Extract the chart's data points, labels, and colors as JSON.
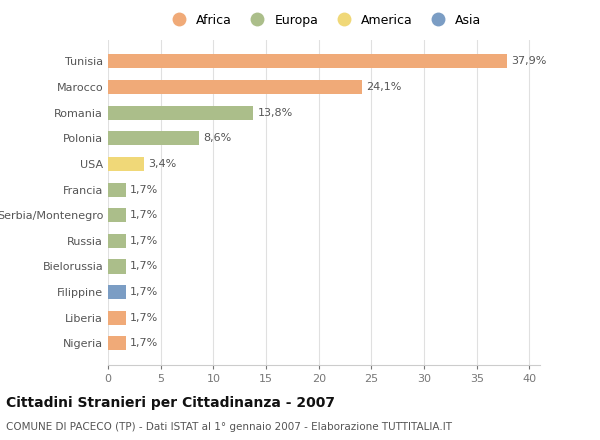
{
  "categories": [
    "Nigeria",
    "Liberia",
    "Filippine",
    "Bielorussia",
    "Russia",
    "Serbia/Montenegro",
    "Francia",
    "USA",
    "Polonia",
    "Romania",
    "Marocco",
    "Tunisia"
  ],
  "values": [
    1.7,
    1.7,
    1.7,
    1.7,
    1.7,
    1.7,
    1.7,
    3.4,
    8.6,
    13.8,
    24.1,
    37.9
  ],
  "labels": [
    "1,7%",
    "1,7%",
    "1,7%",
    "1,7%",
    "1,7%",
    "1,7%",
    "1,7%",
    "3,4%",
    "8,6%",
    "13,8%",
    "24,1%",
    "37,9%"
  ],
  "colors": [
    "#F0AA78",
    "#F0AA78",
    "#7B9DC4",
    "#ABBE8A",
    "#ABBE8A",
    "#ABBE8A",
    "#ABBE8A",
    "#F0D878",
    "#ABBE8A",
    "#ABBE8A",
    "#F0AA78",
    "#F0AA78"
  ],
  "legend": [
    {
      "label": "Africa",
      "color": "#F0AA78"
    },
    {
      "label": "Europa",
      "color": "#ABBE8A"
    },
    {
      "label": "America",
      "color": "#F0D878"
    },
    {
      "label": "Asia",
      "color": "#7B9DC4"
    }
  ],
  "title": "Cittadini Stranieri per Cittadinanza - 2007",
  "subtitle": "COMUNE DI PACECO (TP) - Dati ISTAT al 1° gennaio 2007 - Elaborazione TUTTITALIA.IT",
  "xlim": [
    0,
    41
  ],
  "xticks": [
    0,
    5,
    10,
    15,
    20,
    25,
    30,
    35,
    40
  ],
  "background_color": "#ffffff",
  "grid_color": "#e0e0e0",
  "bar_height": 0.55,
  "label_fontsize": 8,
  "tick_fontsize": 8,
  "legend_fontsize": 9,
  "title_fontsize": 10,
  "subtitle_fontsize": 7.5
}
